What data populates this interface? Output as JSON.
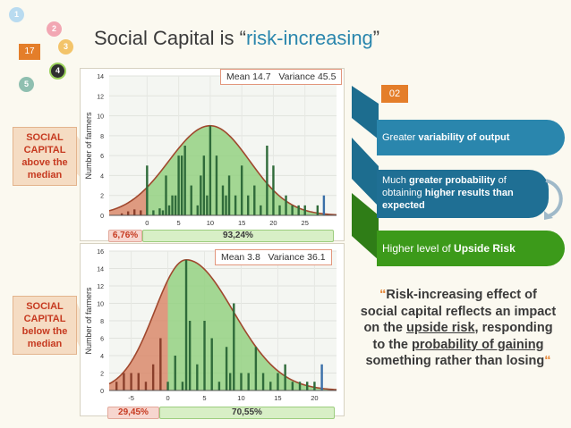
{
  "pagenum": "17",
  "nav_bubbles": [
    "1",
    "2",
    "3",
    "4",
    "5"
  ],
  "title": {
    "prefix": "Social Capital is ",
    "quote_open": "“",
    "highlight": "risk-increasing",
    "quote_close": "”"
  },
  "colors": {
    "accent_blue": "#2a86ad",
    "dark_blue": "#1d6d8f",
    "green": "#3c9a1a",
    "orange": "#e47e2a",
    "red_label": "#c63a20"
  },
  "side_labels": {
    "above": [
      "SOCIAL",
      "CAPITAL",
      "above the",
      "median"
    ],
    "below": [
      "SOCIAL",
      "CAPITAL",
      "below the",
      "median"
    ]
  },
  "ylabel": "Number of farmers",
  "chart_data": [
    {
      "type": "bar",
      "ylim": [
        0,
        14
      ],
      "yticks": [
        "0",
        "2",
        "4",
        "6",
        "8",
        "10",
        "12",
        "14"
      ],
      "xlim": [
        -6,
        30
      ],
      "xticks": [
        {
          "v": 0,
          "t": "0"
        },
        {
          "v": 5,
          "t": "5"
        },
        {
          "v": 10,
          "t": "10"
        },
        {
          "v": 15,
          "t": "15"
        },
        {
          "v": 20,
          "t": "20"
        },
        {
          "v": 25,
          "t": "25"
        }
      ],
      "threshold": 0,
      "bars": [
        [
          -4,
          0.2
        ],
        [
          -3,
          0.4
        ],
        [
          -2,
          0.6
        ],
        [
          -1,
          0.5
        ],
        [
          0,
          5
        ],
        [
          1,
          0.5
        ],
        [
          2,
          0.7
        ],
        [
          2.5,
          0.5
        ],
        [
          3,
          4
        ],
        [
          3.5,
          1
        ],
        [
          4,
          2
        ],
        [
          4.5,
          2
        ],
        [
          5,
          6
        ],
        [
          5.5,
          6
        ],
        [
          6,
          7
        ],
        [
          7,
          3
        ],
        [
          8,
          1
        ],
        [
          8.5,
          4
        ],
        [
          9,
          6
        ],
        [
          9.5,
          2
        ],
        [
          10,
          9
        ],
        [
          11,
          6
        ],
        [
          12,
          3
        ],
        [
          12.5,
          2
        ],
        [
          13,
          4
        ],
        [
          14,
          2
        ],
        [
          15,
          5
        ],
        [
          16,
          2
        ],
        [
          17,
          3
        ],
        [
          18,
          1
        ],
        [
          19,
          7
        ],
        [
          20,
          5
        ],
        [
          21,
          1
        ],
        [
          22,
          2
        ],
        [
          23,
          1
        ],
        [
          24,
          1
        ],
        [
          25,
          1
        ],
        [
          27,
          1
        ],
        [
          28,
          2
        ]
      ],
      "stats": {
        "mean_label": "Mean 14.7",
        "var_label": "Variance 45.5"
      },
      "pct_below": "6,76%",
      "pct_above": "93,24%"
    },
    {
      "type": "bar",
      "ylim": [
        0,
        16
      ],
      "yticks": [
        "0",
        "2",
        "4",
        "6",
        "8",
        "10",
        "12",
        "14",
        "16"
      ],
      "xlim": [
        -8,
        23
      ],
      "xticks": [
        {
          "v": -5,
          "t": "-5"
        },
        {
          "v": 0,
          "t": "0"
        },
        {
          "v": 5,
          "t": "5"
        },
        {
          "v": 10,
          "t": "10"
        },
        {
          "v": 15,
          "t": "15"
        },
        {
          "v": 20,
          "t": "20"
        }
      ],
      "threshold": 0,
      "bars": [
        [
          -7,
          1
        ],
        [
          -6,
          2
        ],
        [
          -5,
          2
        ],
        [
          -4,
          2
        ],
        [
          -3,
          1
        ],
        [
          -2,
          3
        ],
        [
          -1,
          6
        ],
        [
          0,
          1
        ],
        [
          1,
          4
        ],
        [
          2,
          1
        ],
        [
          2.5,
          15
        ],
        [
          3,
          8
        ],
        [
          4,
          3
        ],
        [
          5,
          8
        ],
        [
          6,
          6
        ],
        [
          7,
          1
        ],
        [
          8,
          5
        ],
        [
          8.5,
          2
        ],
        [
          9,
          10
        ],
        [
          10,
          2
        ],
        [
          11,
          2
        ],
        [
          12,
          5
        ],
        [
          13,
          2
        ],
        [
          14,
          1
        ],
        [
          15,
          2
        ],
        [
          16,
          3
        ],
        [
          17,
          1
        ],
        [
          18,
          1
        ],
        [
          19,
          1
        ],
        [
          20,
          1
        ],
        [
          21,
          3
        ]
      ],
      "stats": {
        "mean_label": "Mean 3.8",
        "var_label": "Variance 36.1"
      },
      "pct_below": "29,45%",
      "pct_above": "70,55%"
    }
  ],
  "right_panel": {
    "tag": "02",
    "item1": {
      "pre": "Greater ",
      "bold": "variability of output"
    },
    "item2": {
      "pre": "Much ",
      "bold1": "greater probability",
      "mid": " of obtaining ",
      "bold2": "higher results than expected"
    },
    "item3": {
      "pre": "Higher level of ",
      "bold": "Upside Risk"
    }
  },
  "quote": {
    "open": "“",
    "line1": "Risk-increasing effect of social capital reflects an impact on the ",
    "u1": "upside risk",
    "line2": ", responding to the ",
    "u2": "probability of gaining",
    "line3": " something rather than losing",
    "close": "“"
  }
}
